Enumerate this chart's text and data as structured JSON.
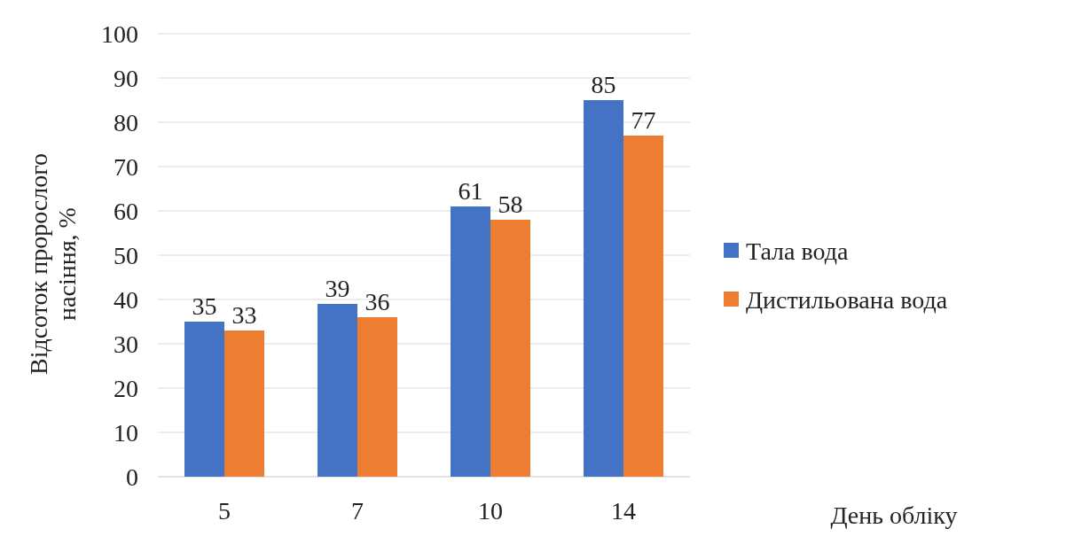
{
  "chart_data": {
    "type": "bar",
    "annotations": [
      "День обліку"
    ],
    "ylabel": "Відсоток пророслого насіння, %",
    "categories": [
      "5",
      "7",
      "10",
      "14"
    ],
    "series": [
      {
        "name": "Тала вода",
        "color": "#4472c4",
        "values": [
          35,
          39,
          61,
          85
        ]
      },
      {
        "name": "Дистильована вода",
        "color": "#ed7d31",
        "values": [
          33,
          36,
          58,
          77
        ]
      }
    ],
    "ylim": [
      0,
      100
    ],
    "yticks": [
      0,
      10,
      20,
      30,
      40,
      50,
      60,
      70,
      80,
      90,
      100
    ],
    "grid": "y",
    "legend": "right",
    "data_labels": true
  }
}
